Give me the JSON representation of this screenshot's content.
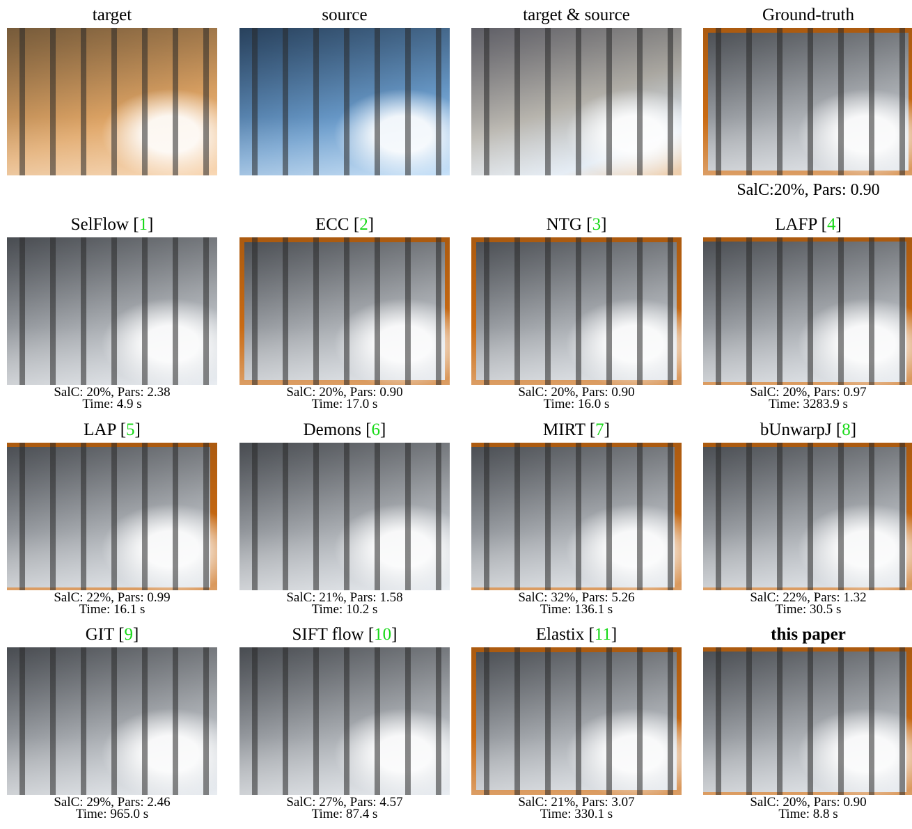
{
  "panels": [
    {
      "name": "target"
    },
    {
      "name": "source"
    },
    {
      "name": "target & source"
    },
    {
      "name": "Ground-truth",
      "caption": [
        "SalC:20%, Pars: 0.90"
      ]
    },
    {
      "name": "SelFlow",
      "open": "[",
      "ref": "1",
      "close": "]",
      "caption": [
        "SalC: 20%, Pars: 2.38",
        "Time: 4.9 s"
      ]
    },
    {
      "name": "ECC",
      "open": "[",
      "ref": "2",
      "close": "]",
      "caption": [
        "SalC: 20%, Pars: 0.90",
        "Time: 17.0 s"
      ]
    },
    {
      "name": "NTG",
      "open": "[",
      "ref": "3",
      "close": "]",
      "caption": [
        "SalC: 20%, Pars: 0.90",
        "Time: 16.0 s"
      ]
    },
    {
      "name": "LAFP",
      "open": "[",
      "ref": "4",
      "close": "]",
      "caption": [
        "SalC: 20%, Pars: 0.97",
        "Time: 3283.9 s"
      ]
    },
    {
      "name": "LAP",
      "open": "[",
      "ref": "5",
      "close": "]",
      "caption": [
        "SalC: 22%, Pars: 0.99",
        "Time: 16.1 s"
      ]
    },
    {
      "name": "Demons",
      "open": "[",
      "ref": "6",
      "close": "]",
      "caption": [
        "SalC: 21%, Pars: 1.58",
        "Time: 10.2 s"
      ]
    },
    {
      "name": "MIRT",
      "open": "[",
      "ref": "7",
      "close": "]",
      "caption": [
        "SalC: 32%, Pars: 5.26",
        "Time: 136.1 s"
      ]
    },
    {
      "name": "bUnwarpJ",
      "open": "[",
      "ref": "8",
      "close": "]",
      "caption": [
        "SalC: 22%, Pars: 1.32",
        "Time: 30.5 s"
      ]
    },
    {
      "name": "GIT",
      "open": "[",
      "ref": "9",
      "close": "]",
      "caption": [
        "SalC: 29%, Pars: 2.46",
        "Time: 965.0 s"
      ]
    },
    {
      "name": "SIFT flow",
      "open": "[",
      "ref": "10",
      "close": "]",
      "caption": [
        "SalC: 27%, Pars: 4.57",
        "Time: 87.4 s"
      ]
    },
    {
      "name": "Elastix",
      "open": "[",
      "ref": "11",
      "close": "]",
      "caption": [
        "SalC: 21%, Pars: 3.07",
        "Time: 330.1 s"
      ]
    },
    {
      "name": "this paper",
      "caption": [
        "SalC: 20%, Pars: 0.90",
        "Time: 8.8 s"
      ]
    }
  ]
}
